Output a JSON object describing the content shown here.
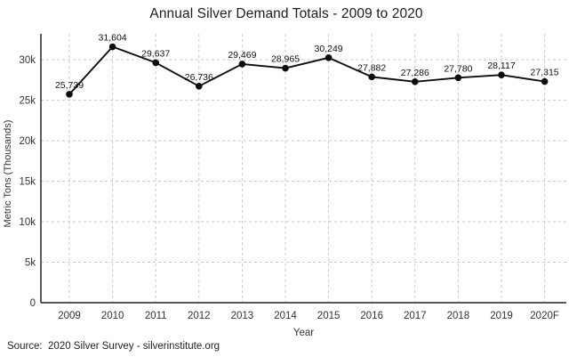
{
  "title": "Annual Silver Demand Totals - 2009 to 2020",
  "source_text": "Source:  2020 Silver Survey - silverinstitute.org",
  "chart_data": {
    "type": "line",
    "title": "Annual Silver Demand Totals - 2009 to 2020",
    "xlabel": "Year",
    "ylabel": "Metric Tons (Thousands)",
    "categories": [
      "2009",
      "2010",
      "2011",
      "2012",
      "2013",
      "2014",
      "2015",
      "2016",
      "2017",
      "2018",
      "2019",
      "2020F"
    ],
    "values": [
      25739,
      31604,
      29637,
      26736,
      29469,
      28965,
      30249,
      27882,
      27286,
      27780,
      28117,
      27315
    ],
    "data_labels": [
      "25,739",
      "31,604",
      "29,637",
      "26,736",
      "29,469",
      "28,965",
      "30,249",
      "27,882",
      "27,286",
      "27,780",
      "28,117",
      "27,315"
    ],
    "ylim": [
      0,
      33200
    ],
    "yticks": [
      {
        "value": 0,
        "label": "0"
      },
      {
        "value": 5000,
        "label": "5k"
      },
      {
        "value": 10000,
        "label": "10k"
      },
      {
        "value": 15000,
        "label": "15k"
      },
      {
        "value": 20000,
        "label": "20k"
      },
      {
        "value": 25000,
        "label": "25k"
      },
      {
        "value": 30000,
        "label": "30k"
      }
    ],
    "grid": "dashed-both",
    "legend": "none",
    "colors": {
      "line": "#0d0d0d",
      "marker": "#0d0d0d",
      "grid": "#c9c9c9",
      "axis": "#3f3f3f",
      "label_text": "#101010",
      "background": "#ffffff"
    }
  }
}
